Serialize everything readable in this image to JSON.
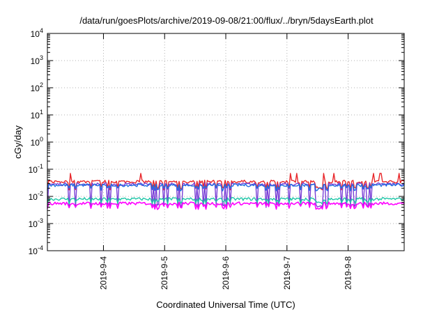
{
  "chart_data": {
    "type": "line",
    "title": "/data/run/goesPlots/archive/2019-09-08/21:00/flux/../bryn/5daysEarth.plot",
    "xlabel": "Coordinated Universal Time (UTC)",
    "ylabel": "cGy/day",
    "yscale": "log",
    "ylim": [
      0.0001,
      10000
    ],
    "xlim": [
      "2019-09-03 02:00",
      "2019-09-08 22:00"
    ],
    "grid": true,
    "x_ticks": [
      "2019-9-4",
      "2019-9-5",
      "2019-9-6",
      "2019-9-7",
      "2019-9-8"
    ],
    "y_ticks": [
      {
        "base": "10",
        "exp": "-4"
      },
      {
        "base": "10",
        "exp": "-3"
      },
      {
        "base": "10",
        "exp": "-2"
      },
      {
        "base": "10",
        "exp": "-1"
      },
      {
        "base": "10",
        "exp": "0"
      },
      {
        "base": "10",
        "exp": "1"
      },
      {
        "base": "10",
        "exp": "2"
      },
      {
        "base": "10",
        "exp": "3"
      },
      {
        "base": "10",
        "exp": "4"
      }
    ],
    "series": [
      {
        "color": "#e8262a",
        "baseline": 0.035,
        "low": 0.02
      },
      {
        "color": "#7a3fd6",
        "baseline": 0.028,
        "low": 0.0045
      },
      {
        "color": "#1f6fe0",
        "baseline": 0.026,
        "low": 0.018
      },
      {
        "color": "#1fc6a8",
        "baseline": 0.008,
        "low": 0.006
      },
      {
        "color": "#ff00ff",
        "baseline": 0.0055,
        "low": 0.0038
      }
    ]
  }
}
